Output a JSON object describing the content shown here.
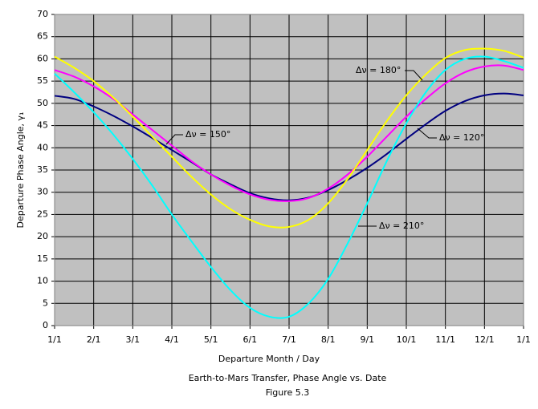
{
  "chart_data": {
    "type": "line",
    "title": "Earth-to-Mars Transfer, Phase Angle vs. Date",
    "subtitle": "Figure 5.3",
    "x_label": "Departure Month / Day",
    "y_label": "Departure Phase Angle, γ₁",
    "categories": [
      "1/1",
      null,
      "2/1",
      null,
      "3/1",
      null,
      "4/1",
      null,
      "5/1",
      null,
      "6/1",
      null,
      "7/1",
      null,
      "8/1",
      null,
      "9/1",
      null,
      "10/1",
      null,
      "11/1",
      null,
      "12/1",
      null,
      "1/1"
    ],
    "ylim": [
      0,
      70
    ],
    "yticks": [
      0,
      5,
      10,
      15,
      20,
      25,
      30,
      35,
      40,
      45,
      50,
      55,
      60,
      65,
      70
    ],
    "grid": true,
    "series": [
      {
        "name": "Δν = 120°",
        "color": "#000080",
        "values": [
          51.7,
          51,
          49.3,
          47.2,
          44.8,
          42.2,
          39.5,
          36.8,
          34,
          31.8,
          29.8,
          28.6,
          28.2,
          28.8,
          30.5,
          32.8,
          35.5,
          38.6,
          42,
          45.3,
          48.3,
          50.5,
          51.8,
          52.2,
          51.8
        ]
      },
      {
        "name": "Δν = 150°",
        "color": "#ff00ff",
        "values": [
          57.5,
          56,
          53.8,
          51,
          47.5,
          44,
          40.5,
          37,
          34,
          31.5,
          29.5,
          28.3,
          28,
          28.7,
          30.8,
          34,
          38,
          42.5,
          47,
          51,
          54.5,
          57,
          58.3,
          58.5,
          57.5
        ]
      },
      {
        "name": "Δν = 180°",
        "color": "#ffff00",
        "values": [
          60.5,
          58,
          55,
          51.3,
          47,
          42.5,
          38,
          33.5,
          29.5,
          26.2,
          23.8,
          22.3,
          22.2,
          23.8,
          27.5,
          33,
          39.5,
          46,
          51.8,
          56.5,
          60.2,
          62,
          62.3,
          61.8,
          60.3
        ]
      },
      {
        "name": "Δν = 210°",
        "color": "#00ffff",
        "values": [
          56.7,
          52.5,
          48,
          43,
          37.5,
          31.5,
          25,
          19,
          13.2,
          8,
          4,
          2,
          2,
          5,
          10.5,
          18.5,
          27.5,
          37,
          45.5,
          52.5,
          57.5,
          60,
          60.5,
          59.5,
          58
        ]
      }
    ]
  }
}
